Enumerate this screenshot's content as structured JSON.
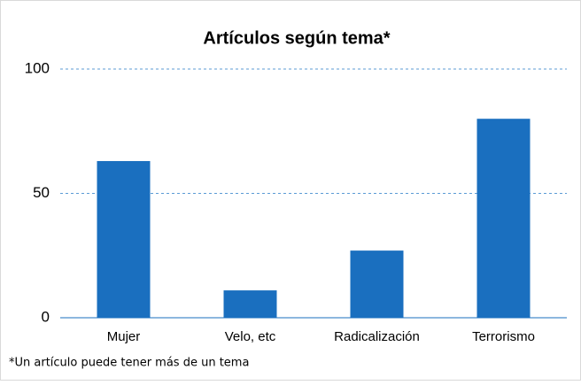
{
  "chart_data": {
    "type": "bar",
    "title": "Artículos según tema*",
    "categories": [
      "Mujer",
      "Velo, etc",
      "Radicalización",
      "Terrorismo"
    ],
    "values": [
      63,
      11,
      27,
      80
    ],
    "color": "#1a6fbf",
    "ylim": [
      0,
      100
    ],
    "yticks": [
      0,
      50,
      100
    ],
    "grid": true,
    "annotation": "*Un artículo puede tener más de un tema"
  }
}
